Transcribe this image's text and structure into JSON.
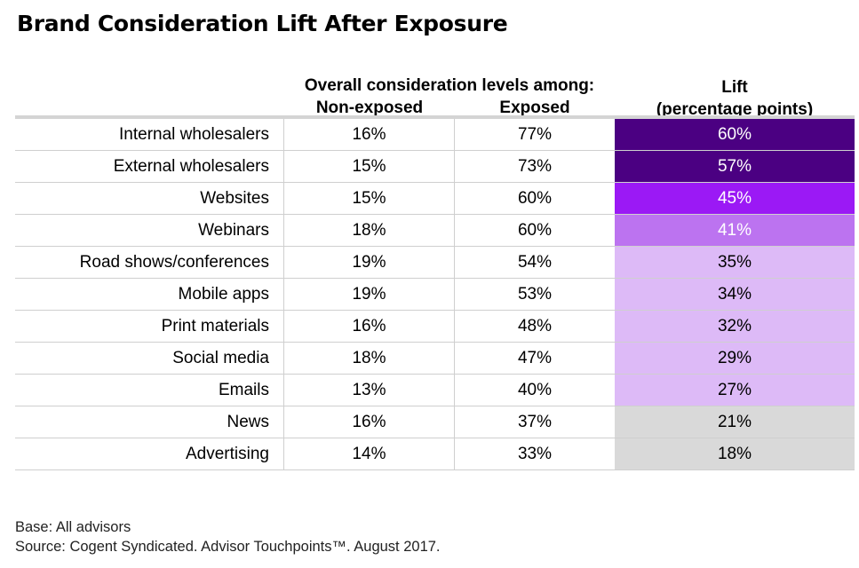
{
  "chart_data": {
    "type": "table",
    "title": "Brand Consideration Lift After Exposure",
    "group_header": "Overall consideration levels among:",
    "columns": {
      "non_exposed": "Non-exposed",
      "exposed": "Exposed",
      "lift_line1": "Lift",
      "lift_line2": "(percentage points)"
    },
    "rows": [
      {
        "label": "Internal wholesalers",
        "non_exposed": "16%",
        "exposed": "77%",
        "lift": "60%",
        "lift_value": 60,
        "color": "#4b0082"
      },
      {
        "label": "External wholesalers",
        "non_exposed": "15%",
        "exposed": "73%",
        "lift": "57%",
        "lift_value": 57,
        "color": "#4b0082"
      },
      {
        "label": "Websites",
        "non_exposed": "15%",
        "exposed": "60%",
        "lift": "45%",
        "lift_value": 45,
        "color": "#9b19f5"
      },
      {
        "label": "Webinars",
        "non_exposed": "18%",
        "exposed": "60%",
        "lift": "41%",
        "lift_value": 41,
        "color": "#bc73f0"
      },
      {
        "label": "Road shows/conferences",
        "non_exposed": "19%",
        "exposed": "54%",
        "lift": "35%",
        "lift_value": 35,
        "color": "#ddbaf7"
      },
      {
        "label": "Mobile apps",
        "non_exposed": "19%",
        "exposed": "53%",
        "lift": "34%",
        "lift_value": 34,
        "color": "#ddbaf7"
      },
      {
        "label": "Print materials",
        "non_exposed": "16%",
        "exposed": "48%",
        "lift": "32%",
        "lift_value": 32,
        "color": "#ddbaf7"
      },
      {
        "label": "Social media",
        "non_exposed": "18%",
        "exposed": "47%",
        "lift": "29%",
        "lift_value": 29,
        "color": "#ddbaf7"
      },
      {
        "label": "Emails",
        "non_exposed": "13%",
        "exposed": "40%",
        "lift": "27%",
        "lift_value": 27,
        "color": "#ddbaf7"
      },
      {
        "label": "News",
        "non_exposed": "16%",
        "exposed": "37%",
        "lift": "21%",
        "lift_value": 21,
        "color": "#d9d9d9"
      },
      {
        "label": "Advertising",
        "non_exposed": "14%",
        "exposed": "33%",
        "lift": "18%",
        "lift_value": 18,
        "color": "#d9d9d9"
      }
    ]
  },
  "footnotes": {
    "base": "Base: All advisors",
    "source": "Source: Cogent Syndicated. Advisor Touchpoints™. August 2017."
  }
}
